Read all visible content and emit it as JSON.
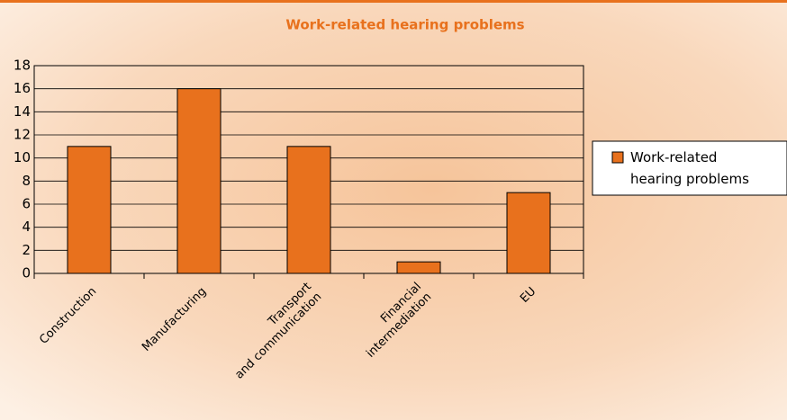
{
  "chart_data": {
    "type": "bar",
    "title": "Work-related hearing problems",
    "categories": [
      "Construction",
      "Manufacturing",
      "Transport\nand communication",
      "Financial\nintermediation",
      "EU"
    ],
    "series": [
      {
        "name": "Work-related hearing problems",
        "color": "#e8711d",
        "values": [
          11,
          16,
          11,
          1,
          7
        ]
      }
    ],
    "ylim": [
      0,
      18
    ],
    "yticks": [
      0,
      2,
      4,
      6,
      8,
      10,
      12,
      14,
      16,
      18
    ],
    "grid": true,
    "legend": "right"
  }
}
